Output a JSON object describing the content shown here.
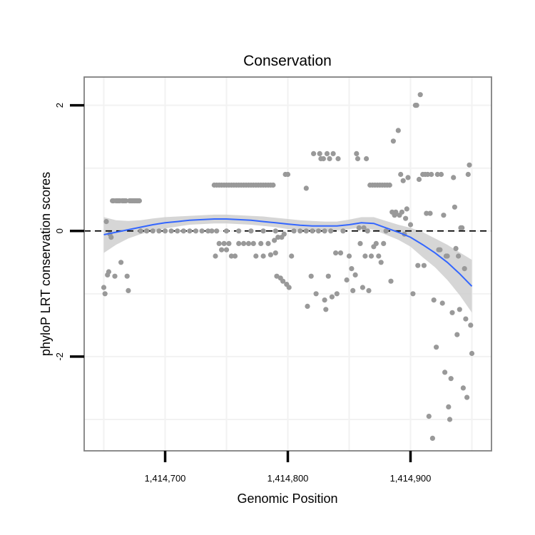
{
  "chart_data": {
    "type": "scatter",
    "title": "Conservation",
    "xlabel": "Genomic Position",
    "ylabel": "phyloP LRT conservation scores",
    "xlim": [
      1414634,
      1414966
    ],
    "ylim": [
      -3.5,
      2.45
    ],
    "x_ticks": [
      {
        "value": 1414700,
        "label": "1,414,700"
      },
      {
        "value": 1414800,
        "label": "1,414,800"
      },
      {
        "value": 1414900,
        "label": "1,414,900"
      }
    ],
    "y_ticks": [
      {
        "value": -2,
        "label": "-2"
      },
      {
        "value": 0,
        "label": "0"
      },
      {
        "value": 2,
        "label": "2"
      }
    ],
    "grid": true,
    "reference_line": {
      "y": 0,
      "style": "dashed"
    },
    "colors": {
      "points": "#999999",
      "smooth_line": "#3366ff",
      "confidence_band": "#cccccc",
      "panel_border": "#7f7f7f",
      "grid": "#f2f2f2"
    },
    "points": [
      {
        "x": 1414650,
        "y": -0.9
      },
      {
        "x": 1414651,
        "y": -1.0
      },
      {
        "x": 1414652,
        "y": 0.15
      },
      {
        "x": 1414653,
        "y": -0.7
      },
      {
        "x": 1414654,
        "y": -0.65
      },
      {
        "x": 1414655,
        "y": -0.05
      },
      {
        "x": 1414656,
        "y": -0.1
      },
      {
        "x": 1414657,
        "y": 0.48
      },
      {
        "x": 1414658,
        "y": 0.48
      },
      {
        "x": 1414659,
        "y": -0.72
      },
      {
        "x": 1414660,
        "y": 0.48
      },
      {
        "x": 1414661,
        "y": 0.48
      },
      {
        "x": 1414662,
        "y": 0.48
      },
      {
        "x": 1414663,
        "y": 0.48
      },
      {
        "x": 1414664,
        "y": -0.5
      },
      {
        "x": 1414665,
        "y": 0.48
      },
      {
        "x": 1414666,
        "y": 0.48
      },
      {
        "x": 1414667,
        "y": 0.48
      },
      {
        "x": 1414668,
        "y": 0.48
      },
      {
        "x": 1414669,
        "y": -0.72
      },
      {
        "x": 1414670,
        "y": -0.95
      },
      {
        "x": 1414671,
        "y": 0.48
      },
      {
        "x": 1414672,
        "y": 0.48
      },
      {
        "x": 1414673,
        "y": 0.48
      },
      {
        "x": 1414674,
        "y": 0.48
      },
      {
        "x": 1414675,
        "y": 0.48
      },
      {
        "x": 1414676,
        "y": 0.48
      },
      {
        "x": 1414677,
        "y": 0.48
      },
      {
        "x": 1414678,
        "y": 0.48
      },
      {
        "x": 1414679,
        "y": 0.48
      },
      {
        "x": 1414680,
        "y": 0.0
      },
      {
        "x": 1414685,
        "y": 0.0
      },
      {
        "x": 1414690,
        "y": 0.0
      },
      {
        "x": 1414695,
        "y": 0.0
      },
      {
        "x": 1414700,
        "y": 0.0
      },
      {
        "x": 1414705,
        "y": 0.0
      },
      {
        "x": 1414710,
        "y": 0.0
      },
      {
        "x": 1414715,
        "y": 0.0
      },
      {
        "x": 1414720,
        "y": 0.0
      },
      {
        "x": 1414725,
        "y": 0.0
      },
      {
        "x": 1414730,
        "y": 0.0
      },
      {
        "x": 1414735,
        "y": 0.0
      },
      {
        "x": 1414738,
        "y": 0.0
      },
      {
        "x": 1414740,
        "y": 0.73
      },
      {
        "x": 1414742,
        "y": 0.73
      },
      {
        "x": 1414744,
        "y": 0.73
      },
      {
        "x": 1414746,
        "y": 0.73
      },
      {
        "x": 1414748,
        "y": 0.73
      },
      {
        "x": 1414750,
        "y": 0.73
      },
      {
        "x": 1414752,
        "y": 0.73
      },
      {
        "x": 1414754,
        "y": 0.73
      },
      {
        "x": 1414756,
        "y": 0.73
      },
      {
        "x": 1414758,
        "y": 0.73
      },
      {
        "x": 1414760,
        "y": 0.73
      },
      {
        "x": 1414762,
        "y": 0.73
      },
      {
        "x": 1414764,
        "y": 0.73
      },
      {
        "x": 1414766,
        "y": 0.73
      },
      {
        "x": 1414768,
        "y": 0.73
      },
      {
        "x": 1414770,
        "y": 0.73
      },
      {
        "x": 1414772,
        "y": 0.73
      },
      {
        "x": 1414774,
        "y": 0.73
      },
      {
        "x": 1414776,
        "y": 0.73
      },
      {
        "x": 1414778,
        "y": 0.73
      },
      {
        "x": 1414780,
        "y": 0.73
      },
      {
        "x": 1414782,
        "y": 0.73
      },
      {
        "x": 1414784,
        "y": 0.73
      },
      {
        "x": 1414786,
        "y": 0.73
      },
      {
        "x": 1414788,
        "y": 0.73
      },
      {
        "x": 1414741,
        "y": -0.4
      },
      {
        "x": 1414744,
        "y": -0.2
      },
      {
        "x": 1414746,
        "y": -0.3
      },
      {
        "x": 1414748,
        "y": -0.2
      },
      {
        "x": 1414750,
        "y": -0.3
      },
      {
        "x": 1414752,
        "y": -0.2
      },
      {
        "x": 1414754,
        "y": -0.4
      },
      {
        "x": 1414757,
        "y": -0.4
      },
      {
        "x": 1414760,
        "y": -0.2
      },
      {
        "x": 1414764,
        "y": -0.2
      },
      {
        "x": 1414768,
        "y": -0.2
      },
      {
        "x": 1414772,
        "y": -0.2
      },
      {
        "x": 1414774,
        "y": -0.4
      },
      {
        "x": 1414778,
        "y": -0.2
      },
      {
        "x": 1414780,
        "y": -0.4
      },
      {
        "x": 1414784,
        "y": -0.2
      },
      {
        "x": 1414786,
        "y": -0.38
      },
      {
        "x": 1414742,
        "y": 0.0
      },
      {
        "x": 1414750,
        "y": 0.0
      },
      {
        "x": 1414760,
        "y": 0.0
      },
      {
        "x": 1414770,
        "y": 0.0
      },
      {
        "x": 1414780,
        "y": 0.0
      },
      {
        "x": 1414790,
        "y": 0.0
      },
      {
        "x": 1414789,
        "y": -0.15
      },
      {
        "x": 1414790,
        "y": -0.35
      },
      {
        "x": 1414791,
        "y": -0.72
      },
      {
        "x": 1414792,
        "y": -0.1
      },
      {
        "x": 1414794,
        "y": -0.75
      },
      {
        "x": 1414795,
        "y": -0.1
      },
      {
        "x": 1414796,
        "y": -0.8
      },
      {
        "x": 1414797,
        "y": -0.05
      },
      {
        "x": 1414798,
        "y": 0.9
      },
      {
        "x": 1414799,
        "y": -0.85
      },
      {
        "x": 1414800,
        "y": 0.9
      },
      {
        "x": 1414801,
        "y": -0.9
      },
      {
        "x": 1414803,
        "y": -0.4
      },
      {
        "x": 1414805,
        "y": 0.0
      },
      {
        "x": 1414810,
        "y": 0.0
      },
      {
        "x": 1414815,
        "y": 0.0
      },
      {
        "x": 1414820,
        "y": 0.0
      },
      {
        "x": 1414825,
        "y": 0.0
      },
      {
        "x": 1414830,
        "y": 0.0
      },
      {
        "x": 1414835,
        "y": 0.0
      },
      {
        "x": 1414815,
        "y": 0.68
      },
      {
        "x": 1414816,
        "y": -1.2
      },
      {
        "x": 1414819,
        "y": -0.72
      },
      {
        "x": 1414821,
        "y": 1.23
      },
      {
        "x": 1414823,
        "y": -1.0
      },
      {
        "x": 1414826,
        "y": 1.23
      },
      {
        "x": 1414827,
        "y": 1.15
      },
      {
        "x": 1414829,
        "y": 1.15
      },
      {
        "x": 1414830,
        "y": -1.1
      },
      {
        "x": 1414831,
        "y": -1.25
      },
      {
        "x": 1414832,
        "y": 1.23
      },
      {
        "x": 1414833,
        "y": -0.72
      },
      {
        "x": 1414834,
        "y": 1.15
      },
      {
        "x": 1414836,
        "y": -1.05
      },
      {
        "x": 1414837,
        "y": 1.23
      },
      {
        "x": 1414839,
        "y": -0.35
      },
      {
        "x": 1414840,
        "y": -1.0
      },
      {
        "x": 1414841,
        "y": 1.15
      },
      {
        "x": 1414843,
        "y": -0.35
      },
      {
        "x": 1414845,
        "y": 0.0
      },
      {
        "x": 1414848,
        "y": -0.78
      },
      {
        "x": 1414850,
        "y": -0.4
      },
      {
        "x": 1414852,
        "y": -0.6
      },
      {
        "x": 1414853,
        "y": -0.95
      },
      {
        "x": 1414855,
        "y": -0.7
      },
      {
        "x": 1414856,
        "y": 1.23
      },
      {
        "x": 1414857,
        "y": 1.15
      },
      {
        "x": 1414858,
        "y": 0.05
      },
      {
        "x": 1414859,
        "y": -0.2
      },
      {
        "x": 1414861,
        "y": -0.9
      },
      {
        "x": 1414862,
        "y": 0.05
      },
      {
        "x": 1414863,
        "y": -0.4
      },
      {
        "x": 1414864,
        "y": 1.15
      },
      {
        "x": 1414865,
        "y": 0.0
      },
      {
        "x": 1414866,
        "y": -0.95
      },
      {
        "x": 1414867,
        "y": 0.73
      },
      {
        "x": 1414868,
        "y": -0.4
      },
      {
        "x": 1414869,
        "y": 0.73
      },
      {
        "x": 1414870,
        "y": -0.25
      },
      {
        "x": 1414871,
        "y": 0.73
      },
      {
        "x": 1414872,
        "y": -0.2
      },
      {
        "x": 1414873,
        "y": 0.73
      },
      {
        "x": 1414874,
        "y": -0.4
      },
      {
        "x": 1414875,
        "y": 0.73
      },
      {
        "x": 1414876,
        "y": -0.5
      },
      {
        "x": 1414877,
        "y": 0.73
      },
      {
        "x": 1414878,
        "y": -0.2
      },
      {
        "x": 1414879,
        "y": 0.73
      },
      {
        "x": 1414880,
        "y": 0.0
      },
      {
        "x": 1414881,
        "y": 0.73
      },
      {
        "x": 1414883,
        "y": 0.73
      },
      {
        "x": 1414884,
        "y": -0.8
      },
      {
        "x": 1414885,
        "y": 0.3
      },
      {
        "x": 1414886,
        "y": 1.43
      },
      {
        "x": 1414887,
        "y": 0.25
      },
      {
        "x": 1414888,
        "y": 0.3
      },
      {
        "x": 1414890,
        "y": 1.6
      },
      {
        "x": 1414891,
        "y": 0.25
      },
      {
        "x": 1414892,
        "y": 0.9
      },
      {
        "x": 1414893,
        "y": 0.3
      },
      {
        "x": 1414894,
        "y": 0.8
      },
      {
        "x": 1414895,
        "y": -0.05
      },
      {
        "x": 1414896,
        "y": 0.2
      },
      {
        "x": 1414897,
        "y": 0.35
      },
      {
        "x": 1414898,
        "y": 0.85
      },
      {
        "x": 1414900,
        "y": 0.1
      },
      {
        "x": 1414902,
        "y": -1.0
      },
      {
        "x": 1414904,
        "y": 2.0
      },
      {
        "x": 1414905,
        "y": 2.0
      },
      {
        "x": 1414906,
        "y": -0.55
      },
      {
        "x": 1414907,
        "y": 0.82
      },
      {
        "x": 1414908,
        "y": 2.17
      },
      {
        "x": 1414910,
        "y": 0.9
      },
      {
        "x": 1414911,
        "y": -0.55
      },
      {
        "x": 1414912,
        "y": 0.9
      },
      {
        "x": 1414913,
        "y": 0.28
      },
      {
        "x": 1414914,
        "y": 0.9
      },
      {
        "x": 1414915,
        "y": -2.95
      },
      {
        "x": 1414916,
        "y": 0.28
      },
      {
        "x": 1414917,
        "y": 0.9
      },
      {
        "x": 1414918,
        "y": -3.3
      },
      {
        "x": 1414919,
        "y": -1.1
      },
      {
        "x": 1414921,
        "y": -1.85
      },
      {
        "x": 1414922,
        "y": 0.9
      },
      {
        "x": 1414923,
        "y": -0.3
      },
      {
        "x": 1414924,
        "y": -0.3
      },
      {
        "x": 1414925,
        "y": 0.9
      },
      {
        "x": 1414926,
        "y": -1.15
      },
      {
        "x": 1414927,
        "y": 0.25
      },
      {
        "x": 1414928,
        "y": -2.25
      },
      {
        "x": 1414929,
        "y": -0.4
      },
      {
        "x": 1414930,
        "y": -0.4
      },
      {
        "x": 1414931,
        "y": -2.8
      },
      {
        "x": 1414932,
        "y": -3.0
      },
      {
        "x": 1414933,
        "y": -2.35
      },
      {
        "x": 1414934,
        "y": -1.3
      },
      {
        "x": 1414935,
        "y": 0.85
      },
      {
        "x": 1414936,
        "y": 0.38
      },
      {
        "x": 1414937,
        "y": -0.28
      },
      {
        "x": 1414938,
        "y": -1.65
      },
      {
        "x": 1414939,
        "y": -0.4
      },
      {
        "x": 1414940,
        "y": -1.25
      },
      {
        "x": 1414941,
        "y": 0.05
      },
      {
        "x": 1414942,
        "y": 0.05
      },
      {
        "x": 1414943,
        "y": -2.5
      },
      {
        "x": 1414944,
        "y": -0.6
      },
      {
        "x": 1414945,
        "y": -1.4
      },
      {
        "x": 1414946,
        "y": -2.65
      },
      {
        "x": 1414947,
        "y": 0.9
      },
      {
        "x": 1414948,
        "y": 1.05
      },
      {
        "x": 1414949,
        "y": -1.5
      },
      {
        "x": 1414950,
        "y": -1.95
      }
    ],
    "smooth_fit": {
      "x": [
        1414650,
        1414660,
        1414670,
        1414680,
        1414690,
        1414700,
        1414710,
        1414720,
        1414730,
        1414740,
        1414750,
        1414760,
        1414770,
        1414780,
        1414790,
        1414800,
        1414810,
        1414820,
        1414830,
        1414840,
        1414850,
        1414860,
        1414870,
        1414880,
        1414890,
        1414900,
        1414910,
        1414920,
        1414930,
        1414940,
        1414950
      ],
      "y": [
        -0.06,
        -0.02,
        0.02,
        0.06,
        0.1,
        0.13,
        0.15,
        0.17,
        0.18,
        0.19,
        0.19,
        0.18,
        0.17,
        0.15,
        0.13,
        0.11,
        0.09,
        0.08,
        0.08,
        0.08,
        0.1,
        0.13,
        0.12,
        0.05,
        -0.02,
        -0.1,
        -0.22,
        -0.35,
        -0.5,
        -0.68,
        -0.88
      ],
      "ci_upper": [
        0.22,
        0.17,
        0.16,
        0.17,
        0.2,
        0.22,
        0.23,
        0.24,
        0.25,
        0.26,
        0.26,
        0.25,
        0.24,
        0.23,
        0.21,
        0.19,
        0.17,
        0.16,
        0.15,
        0.15,
        0.18,
        0.22,
        0.22,
        0.16,
        0.1,
        0.05,
        -0.02,
        -0.12,
        -0.22,
        -0.34,
        -0.46
      ],
      "ci_lower": [
        -0.35,
        -0.22,
        -0.12,
        -0.05,
        0.0,
        0.04,
        0.07,
        0.1,
        0.11,
        0.12,
        0.12,
        0.11,
        0.1,
        0.08,
        0.06,
        0.03,
        0.01,
        0.0,
        0.0,
        0.01,
        0.03,
        0.05,
        0.02,
        -0.06,
        -0.14,
        -0.25,
        -0.42,
        -0.58,
        -0.78,
        -1.02,
        -1.3
      ]
    }
  }
}
